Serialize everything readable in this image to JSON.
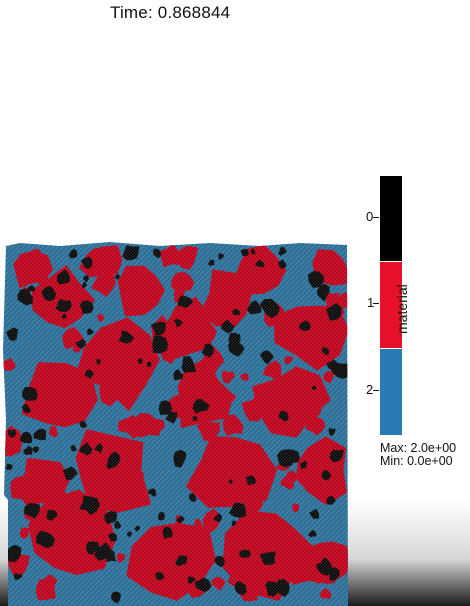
{
  "header": {
    "time_label": "Time: 0.868844"
  },
  "colormap": {
    "title": "material",
    "entries": [
      {
        "label": "0",
        "color": "#000000"
      },
      {
        "label": "1",
        "color": "#e8102a"
      },
      {
        "label": "2",
        "color": "#2a7ab4"
      }
    ],
    "max_label": "Max: 2.0e+00",
    "min_label": "Min: 0.0e+00"
  },
  "colors": {
    "background": "#ffffff",
    "region_blue": "#2f6f96",
    "region_red": "#d0102a",
    "region_black": "#0a0a0a"
  }
}
